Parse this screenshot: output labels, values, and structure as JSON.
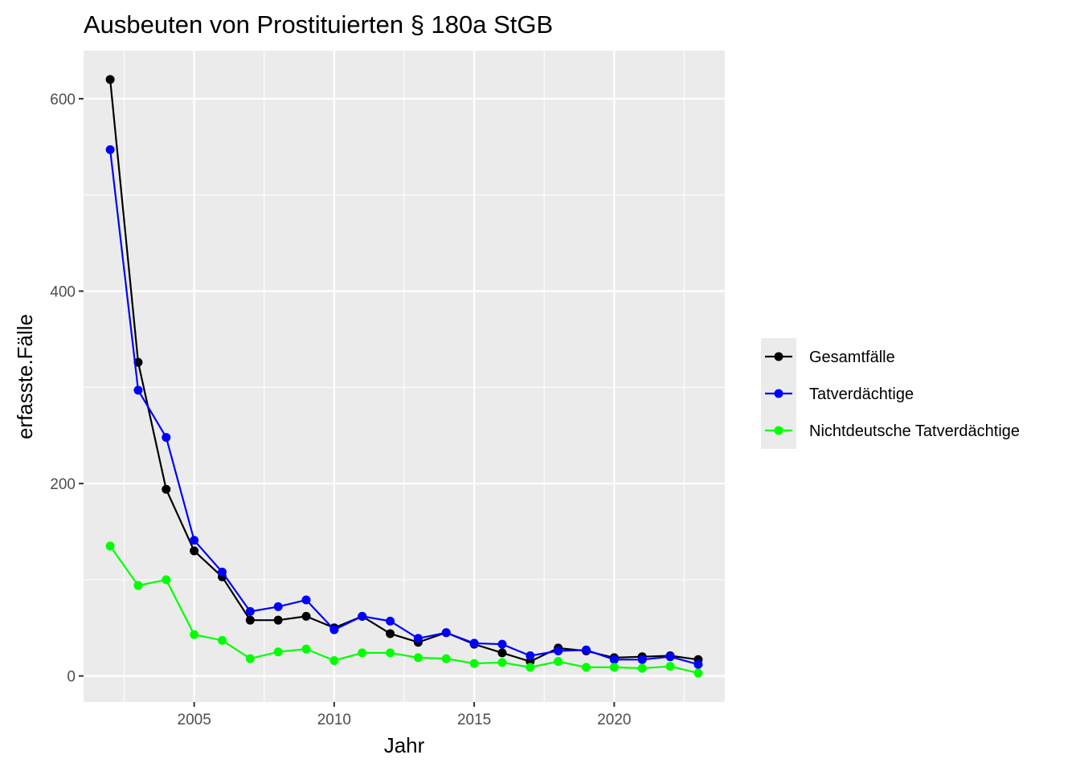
{
  "chart_data": {
    "type": "line",
    "title": "Ausbeuten von Prostituierten § 180a StGB",
    "xlabel": "Jahr",
    "ylabel": "erfasste.Fälle",
    "x": [
      2002,
      2003,
      2004,
      2005,
      2006,
      2007,
      2008,
      2009,
      2010,
      2011,
      2012,
      2013,
      2014,
      2015,
      2016,
      2017,
      2018,
      2019,
      2020,
      2021,
      2022,
      2023
    ],
    "xticks": [
      2005,
      2010,
      2015,
      2020
    ],
    "xtick_labels": [
      "2005",
      "2010",
      "2015",
      "2020"
    ],
    "yticks": [
      0,
      200,
      400,
      600
    ],
    "ytick_labels": [
      "0",
      "200",
      "400",
      "600"
    ],
    "xlim": [
      2001.05,
      2023.95
    ],
    "ylim": [
      -27,
      650
    ],
    "grid": true,
    "legend_position": "right",
    "series": [
      {
        "name": "Gesamtfälle",
        "color": "#000000",
        "values": [
          620,
          326,
          194,
          130,
          103,
          58,
          58,
          62,
          50,
          62,
          44,
          35,
          45,
          33,
          24,
          15,
          29,
          26,
          19,
          20,
          21,
          17
        ]
      },
      {
        "name": "Tatverdächtige",
        "color": "#0000ff",
        "values": [
          547,
          297,
          248,
          141,
          108,
          67,
          72,
          79,
          48,
          62,
          57,
          39,
          45,
          34,
          33,
          21,
          26,
          27,
          17,
          17,
          20,
          12
        ]
      },
      {
        "name": "Nichtdeutsche Tatverdächtige",
        "color": "#00ff00",
        "values": [
          135,
          94,
          100,
          43,
          37,
          18,
          25,
          28,
          16,
          24,
          24,
          19,
          18,
          13,
          14,
          9,
          15,
          9,
          9,
          8,
          10,
          3
        ]
      }
    ]
  }
}
